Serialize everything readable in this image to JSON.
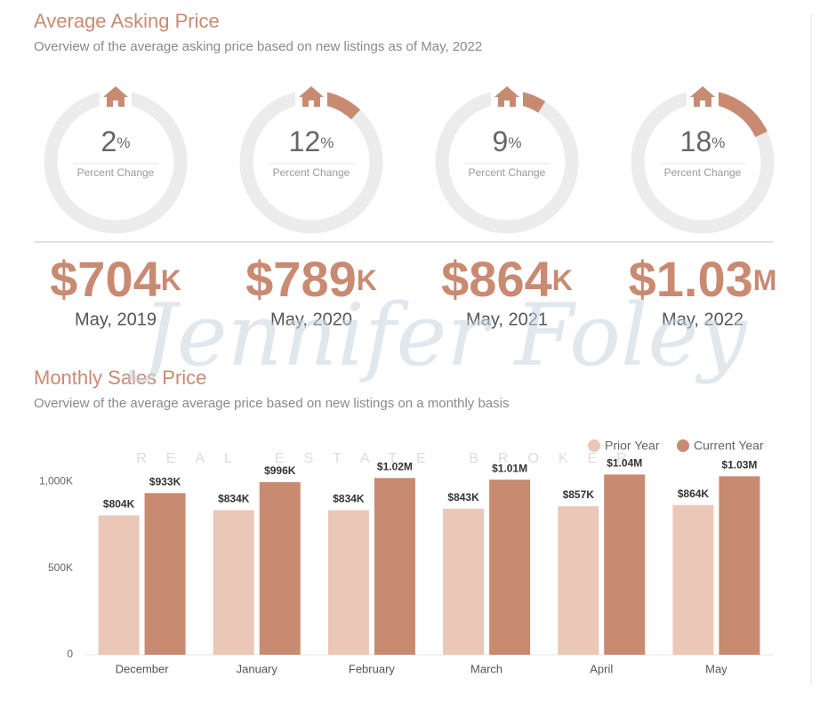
{
  "header": {
    "title": "Average Asking Price",
    "subtitle": "Overview of the average asking price based on new listings as of May, 2022"
  },
  "donuts": [
    {
      "value": 2,
      "unit": "%",
      "label": "Percent Change"
    },
    {
      "value": 12,
      "unit": "%",
      "label": "Percent Change"
    },
    {
      "value": 9,
      "unit": "%",
      "label": "Percent Change"
    },
    {
      "value": 18,
      "unit": "%",
      "label": "Percent Change"
    }
  ],
  "prices": [
    {
      "amount": "$704",
      "unit": "K",
      "date": "May, 2019"
    },
    {
      "amount": "$789",
      "unit": "K",
      "date": "May, 2020"
    },
    {
      "amount": "$864",
      "unit": "K",
      "date": "May, 2021"
    },
    {
      "amount": "$1.03",
      "unit": "M",
      "date": "May, 2022"
    }
  ],
  "watermark": {
    "name": "Jennifer Foley",
    "tagline": "REAL ESTATE BROKER"
  },
  "chart_data": {
    "type": "bar",
    "title": "Monthly Sales Price",
    "subtitle": "Overview of the average average price based on new listings on a monthly basis",
    "categories": [
      "December",
      "January",
      "February",
      "March",
      "April",
      "May"
    ],
    "series": [
      {
        "name": "Prior Year",
        "color": "#ebc7b8",
        "values": [
          804000,
          834000,
          834000,
          843000,
          857000,
          864000
        ],
        "value_labels": [
          "$804K",
          "$834K",
          "$834K",
          "$843K",
          "$857K",
          "$864K"
        ]
      },
      {
        "name": "Current Year",
        "color": "#c98a72",
        "values": [
          933000,
          996000,
          1020000,
          1010000,
          1040000,
          1030000
        ],
        "value_labels": [
          "$933K",
          "$996K",
          "$1.02M",
          "$1.01M",
          "$1.04M",
          "$1.03M"
        ]
      }
    ],
    "ylim": [
      0,
      1150000
    ],
    "yticks": [
      0,
      {
        "value": 500000,
        "label": "500K"
      },
      {
        "value": 1000000,
        "label": "1,000K"
      }
    ],
    "legend": "top-right",
    "grid": false
  }
}
